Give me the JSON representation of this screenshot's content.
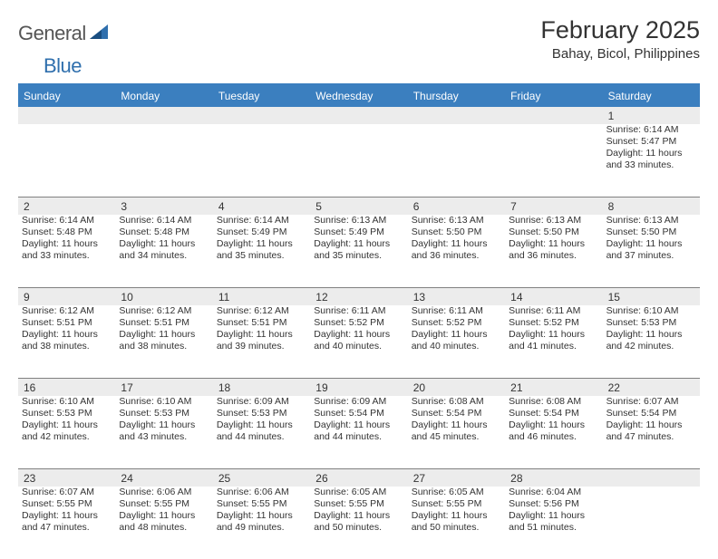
{
  "brand": {
    "word1": "General",
    "word2": "Blue"
  },
  "title": "February 2025",
  "location": "Bahay, Bicol, Philippines",
  "colors": {
    "header_bg": "#3b7fbf",
    "header_text": "#ffffff",
    "band_bg": "#ececec",
    "border": "#808080",
    "text": "#333333",
    "logo_gray": "#555555",
    "logo_blue": "#2f6fad"
  },
  "dow": [
    "Sunday",
    "Monday",
    "Tuesday",
    "Wednesday",
    "Thursday",
    "Friday",
    "Saturday"
  ],
  "weeks": [
    [
      null,
      null,
      null,
      null,
      null,
      null,
      {
        "n": "1",
        "sr": "Sunrise: 6:14 AM",
        "ss": "Sunset: 5:47 PM",
        "d1": "Daylight: 11 hours",
        "d2": "and 33 minutes."
      }
    ],
    [
      {
        "n": "2",
        "sr": "Sunrise: 6:14 AM",
        "ss": "Sunset: 5:48 PM",
        "d1": "Daylight: 11 hours",
        "d2": "and 33 minutes."
      },
      {
        "n": "3",
        "sr": "Sunrise: 6:14 AM",
        "ss": "Sunset: 5:48 PM",
        "d1": "Daylight: 11 hours",
        "d2": "and 34 minutes."
      },
      {
        "n": "4",
        "sr": "Sunrise: 6:14 AM",
        "ss": "Sunset: 5:49 PM",
        "d1": "Daylight: 11 hours",
        "d2": "and 35 minutes."
      },
      {
        "n": "5",
        "sr": "Sunrise: 6:13 AM",
        "ss": "Sunset: 5:49 PM",
        "d1": "Daylight: 11 hours",
        "d2": "and 35 minutes."
      },
      {
        "n": "6",
        "sr": "Sunrise: 6:13 AM",
        "ss": "Sunset: 5:50 PM",
        "d1": "Daylight: 11 hours",
        "d2": "and 36 minutes."
      },
      {
        "n": "7",
        "sr": "Sunrise: 6:13 AM",
        "ss": "Sunset: 5:50 PM",
        "d1": "Daylight: 11 hours",
        "d2": "and 36 minutes."
      },
      {
        "n": "8",
        "sr": "Sunrise: 6:13 AM",
        "ss": "Sunset: 5:50 PM",
        "d1": "Daylight: 11 hours",
        "d2": "and 37 minutes."
      }
    ],
    [
      {
        "n": "9",
        "sr": "Sunrise: 6:12 AM",
        "ss": "Sunset: 5:51 PM",
        "d1": "Daylight: 11 hours",
        "d2": "and 38 minutes."
      },
      {
        "n": "10",
        "sr": "Sunrise: 6:12 AM",
        "ss": "Sunset: 5:51 PM",
        "d1": "Daylight: 11 hours",
        "d2": "and 38 minutes."
      },
      {
        "n": "11",
        "sr": "Sunrise: 6:12 AM",
        "ss": "Sunset: 5:51 PM",
        "d1": "Daylight: 11 hours",
        "d2": "and 39 minutes."
      },
      {
        "n": "12",
        "sr": "Sunrise: 6:11 AM",
        "ss": "Sunset: 5:52 PM",
        "d1": "Daylight: 11 hours",
        "d2": "and 40 minutes."
      },
      {
        "n": "13",
        "sr": "Sunrise: 6:11 AM",
        "ss": "Sunset: 5:52 PM",
        "d1": "Daylight: 11 hours",
        "d2": "and 40 minutes."
      },
      {
        "n": "14",
        "sr": "Sunrise: 6:11 AM",
        "ss": "Sunset: 5:52 PM",
        "d1": "Daylight: 11 hours",
        "d2": "and 41 minutes."
      },
      {
        "n": "15",
        "sr": "Sunrise: 6:10 AM",
        "ss": "Sunset: 5:53 PM",
        "d1": "Daylight: 11 hours",
        "d2": "and 42 minutes."
      }
    ],
    [
      {
        "n": "16",
        "sr": "Sunrise: 6:10 AM",
        "ss": "Sunset: 5:53 PM",
        "d1": "Daylight: 11 hours",
        "d2": "and 42 minutes."
      },
      {
        "n": "17",
        "sr": "Sunrise: 6:10 AM",
        "ss": "Sunset: 5:53 PM",
        "d1": "Daylight: 11 hours",
        "d2": "and 43 minutes."
      },
      {
        "n": "18",
        "sr": "Sunrise: 6:09 AM",
        "ss": "Sunset: 5:53 PM",
        "d1": "Daylight: 11 hours",
        "d2": "and 44 minutes."
      },
      {
        "n": "19",
        "sr": "Sunrise: 6:09 AM",
        "ss": "Sunset: 5:54 PM",
        "d1": "Daylight: 11 hours",
        "d2": "and 44 minutes."
      },
      {
        "n": "20",
        "sr": "Sunrise: 6:08 AM",
        "ss": "Sunset: 5:54 PM",
        "d1": "Daylight: 11 hours",
        "d2": "and 45 minutes."
      },
      {
        "n": "21",
        "sr": "Sunrise: 6:08 AM",
        "ss": "Sunset: 5:54 PM",
        "d1": "Daylight: 11 hours",
        "d2": "and 46 minutes."
      },
      {
        "n": "22",
        "sr": "Sunrise: 6:07 AM",
        "ss": "Sunset: 5:54 PM",
        "d1": "Daylight: 11 hours",
        "d2": "and 47 minutes."
      }
    ],
    [
      {
        "n": "23",
        "sr": "Sunrise: 6:07 AM",
        "ss": "Sunset: 5:55 PM",
        "d1": "Daylight: 11 hours",
        "d2": "and 47 minutes."
      },
      {
        "n": "24",
        "sr": "Sunrise: 6:06 AM",
        "ss": "Sunset: 5:55 PM",
        "d1": "Daylight: 11 hours",
        "d2": "and 48 minutes."
      },
      {
        "n": "25",
        "sr": "Sunrise: 6:06 AM",
        "ss": "Sunset: 5:55 PM",
        "d1": "Daylight: 11 hours",
        "d2": "and 49 minutes."
      },
      {
        "n": "26",
        "sr": "Sunrise: 6:05 AM",
        "ss": "Sunset: 5:55 PM",
        "d1": "Daylight: 11 hours",
        "d2": "and 50 minutes."
      },
      {
        "n": "27",
        "sr": "Sunrise: 6:05 AM",
        "ss": "Sunset: 5:55 PM",
        "d1": "Daylight: 11 hours",
        "d2": "and 50 minutes."
      },
      {
        "n": "28",
        "sr": "Sunrise: 6:04 AM",
        "ss": "Sunset: 5:56 PM",
        "d1": "Daylight: 11 hours",
        "d2": "and 51 minutes."
      },
      null
    ]
  ]
}
